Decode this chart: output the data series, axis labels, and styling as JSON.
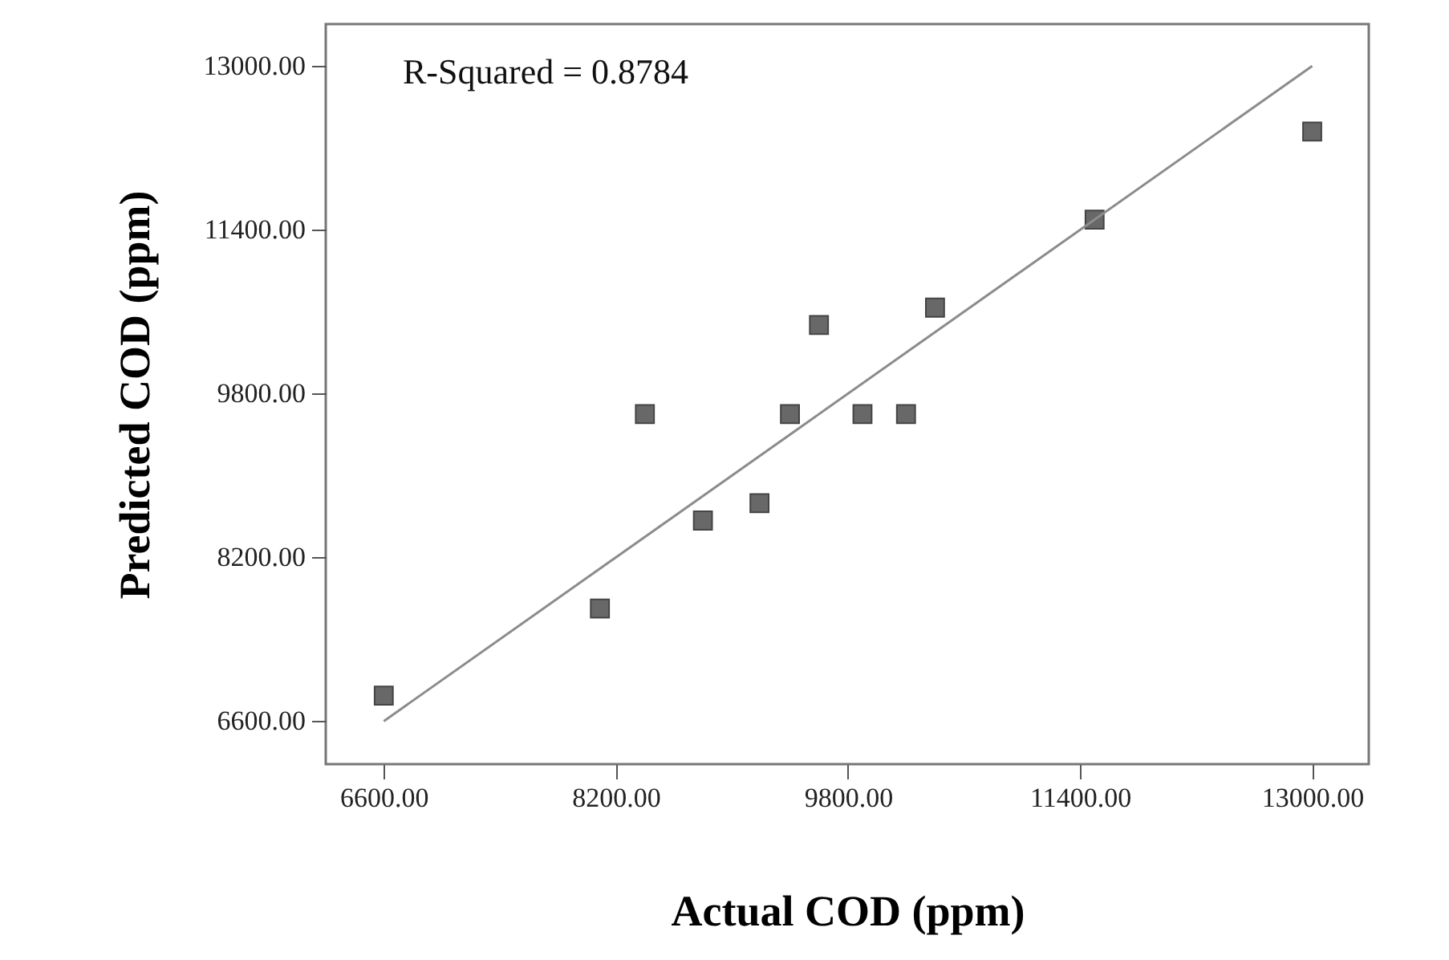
{
  "chart_data": {
    "type": "scatter",
    "xlabel": "Actual COD (ppm)",
    "ylabel": "Predicted COD (ppm)",
    "annotations": [
      "R-Squared = 0.8784"
    ],
    "xlim": [
      6200,
      13390
    ],
    "ylim": [
      6180,
      13410
    ],
    "xticks": [
      {
        "value": 6600,
        "label": "6600.00"
      },
      {
        "value": 8200,
        "label": "8200.00"
      },
      {
        "value": 9800,
        "label": "9800.00"
      },
      {
        "value": 11400,
        "label": "11400.00"
      },
      {
        "value": 13000,
        "label": "13000.00"
      }
    ],
    "yticks": [
      {
        "value": 6600,
        "label": "6600.00"
      },
      {
        "value": 8200,
        "label": "8200.00"
      },
      {
        "value": 9800,
        "label": "9800.00"
      },
      {
        "value": 11400,
        "label": "11400.00"
      },
      {
        "value": 13000,
        "label": "13000.00"
      }
    ],
    "grid": false,
    "series": [
      {
        "color": "#686868",
        "marker": "square",
        "x": [
          6600,
          8090,
          8400,
          8800,
          9190,
          9400,
          9600,
          9900,
          10200,
          10400,
          11500,
          13000
        ],
        "values": [
          6850,
          7700,
          9600,
          8560,
          8730,
          9600,
          10470,
          9600,
          9600,
          10640,
          11500,
          12360
        ]
      },
      {
        "type": "line",
        "color": "#8c8c8c",
        "x": [
          6600,
          13000
        ],
        "values": [
          6600,
          13000
        ]
      }
    ]
  }
}
